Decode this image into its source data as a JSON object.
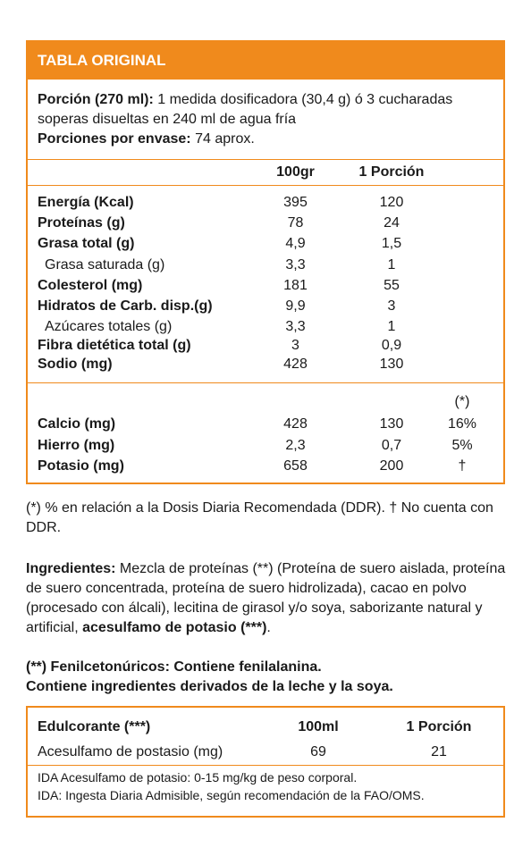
{
  "colors": {
    "accent": "#f08a1c"
  },
  "header": {
    "title": "TABLA ORIGINAL"
  },
  "porcion": {
    "label": "Porción (270 ml):",
    "text": " 1 medida dosificadora (30,4 g) ó 3 cucharadas soperas disueltas en 240 ml de agua fría",
    "envase_label": "Porciones por envase:",
    "envase_value": " 74 aprox."
  },
  "columns": {
    "c100": "100gr",
    "porcion": "1 Porción"
  },
  "nutrients": [
    {
      "name": "Energía (Kcal)",
      "v100": "395",
      "vpor": "120"
    },
    {
      "name": "Proteínas (g)",
      "v100": "78",
      "vpor": "24"
    },
    {
      "name": "Grasa total (g)",
      "v100": "4,9",
      "vpor": "1,5"
    },
    {
      "name": "Grasa saturada (g)",
      "v100": "3,3",
      "vpor": "1"
    },
    {
      "name": "Colesterol (mg)",
      "v100": "181",
      "vpor": "55"
    },
    {
      "name": "Hidratos de Carb. disp.(g)",
      "v100": "9,9",
      "vpor": "3"
    },
    {
      "name": "Azúcares totales (g)",
      "v100": "3,3",
      "vpor": "1"
    },
    {
      "name": "Fibra dietética total (g)",
      "v100": "3",
      "vpor": "0,9"
    },
    {
      "name": "Sodio (mg)",
      "v100": "428",
      "vpor": "130"
    }
  ],
  "ddr_header": "(*)",
  "minerals": [
    {
      "name": "Calcio (mg)",
      "v100": "428",
      "vpor": "130",
      "ddr": "16%"
    },
    {
      "name": "Hierro (mg)",
      "v100": "2,3",
      "vpor": "0,7",
      "ddr": "5%"
    },
    {
      "name": "Potasio (mg)",
      "v100": "658",
      "vpor": "200",
      "ddr": "†"
    }
  ],
  "footnote": "(*) % en relación a la Dosis Diaria Recomendada (DDR). † No cuenta con DDR.",
  "ingredients": {
    "label": "Ingredientes:",
    "text": " Mezcla de proteínas (**) (Proteína de suero aislada, proteína de suero concentrada, proteína de suero hidrolizada), cacao en polvo (procesado con álcali), lecitina de girasol y/o soya, saborizante natural y artificial, ",
    "bold_tail": "acesulfamo de potasio (***)",
    "end": "."
  },
  "warnings": {
    "line1": "(**) Fenilcetonúricos: Contiene fenilalanina.",
    "line2": "Contiene ingredientes derivados de la leche y la soya."
  },
  "sweetener": {
    "header_label": "Edulcorante (***)",
    "header_c1": "100ml",
    "header_c2": "1 Porción",
    "row_name": "Acesulfamo de postasio (mg)",
    "row_v1": "69",
    "row_v2": "21",
    "ida1": "IDA Acesulfamo de potasio: 0-15 mg/kg de peso corporal.",
    "ida2": "IDA: Ingesta Diaria Admisible, según recomendación de la FAO/OMS."
  }
}
